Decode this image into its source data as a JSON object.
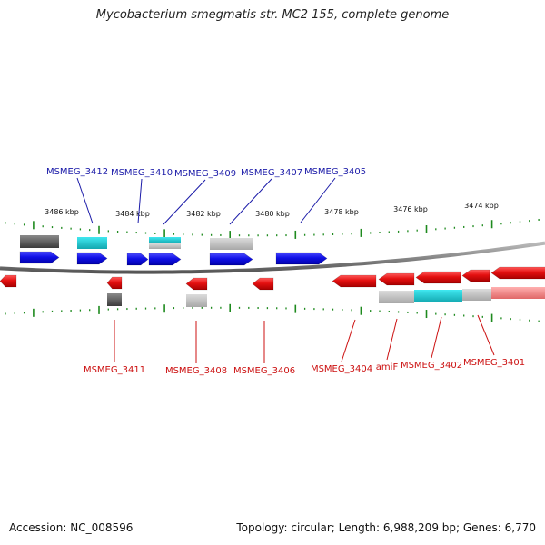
{
  "title": "Mycobacterium smegmatis str. MC2 155, complete genome",
  "footer": {
    "accession": "Accession: NC_008596",
    "summary": "Topology: circular; Length: 6,988,209 bp; Genes: 6,770"
  },
  "colors": {
    "forward_label": "#1a1aa8",
    "reverse_label": "#cc1111",
    "forward_gene": "#1010e0",
    "reverse_gene": "#e01010",
    "tick": "#1e8a1e",
    "backbone": "#888888",
    "teal": "#19c4cc",
    "gray": "#aaaaaa",
    "dark_gray": "#555555",
    "light_gray": "#c8c8c8",
    "pink": "#f08080"
  },
  "tick_labels": [
    "3486 kbp",
    "3484 kbp",
    "3482 kbp",
    "3480 kbp",
    "3478 kbp",
    "3476 kbp",
    "3474 kbp"
  ],
  "forward_gene_labels": [
    "MSMEG_3412",
    "MSMEG_3410",
    "MSMEG_3409",
    "MSMEG_3407",
    "MSMEG_3405"
  ],
  "reverse_gene_labels": [
    "MSMEG_3411",
    "MSMEG_3408",
    "MSMEG_3406",
    "MSMEG_3404",
    "amiF",
    "MSMEG_3402",
    "MSMEG_3401"
  ]
}
